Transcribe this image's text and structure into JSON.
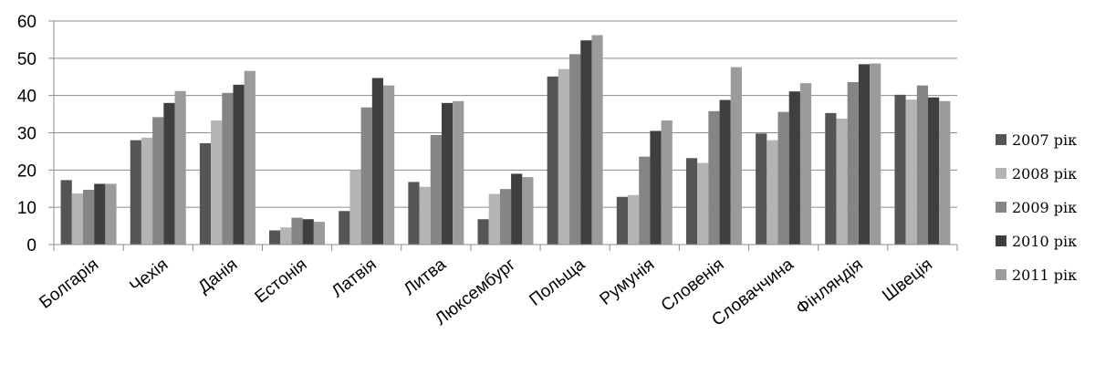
{
  "chart_data": {
    "type": "bar",
    "title": "",
    "xlabel": "",
    "ylabel": "",
    "ylim": [
      0,
      60
    ],
    "yticks": [
      0,
      10,
      20,
      30,
      40,
      50,
      60
    ],
    "grid": true,
    "legend_position": "right",
    "categories": [
      "Болгарія",
      "Чехія",
      "Данія",
      "Естонія",
      "Латвія",
      "Литва",
      "Люксембург",
      "Польща",
      "Румунія",
      "Словенія",
      "Словаччина",
      "Фінляндія",
      "Швеція"
    ],
    "series": [
      {
        "name": "2007 рік",
        "color": "#555555",
        "values": [
          17.3,
          28.0,
          27.2,
          3.8,
          9.0,
          16.8,
          6.8,
          45.1,
          12.8,
          23.2,
          29.8,
          35.3,
          40.2
        ]
      },
      {
        "name": "2008 рік",
        "color": "#b4b4b4",
        "values": [
          13.7,
          28.7,
          33.3,
          4.6,
          20.0,
          15.5,
          13.6,
          47.1,
          13.3,
          21.9,
          28.0,
          33.8,
          38.9
        ]
      },
      {
        "name": "2009 рік",
        "color": "#858585",
        "values": [
          14.7,
          34.2,
          40.7,
          7.2,
          36.8,
          29.4,
          14.9,
          51.1,
          23.6,
          35.8,
          35.6,
          43.6,
          42.7
        ]
      },
      {
        "name": "2010 рік",
        "color": "#3f3f3f",
        "values": [
          16.3,
          38.0,
          42.9,
          6.8,
          44.7,
          38.0,
          19.0,
          54.8,
          30.5,
          38.8,
          41.1,
          48.4,
          39.5
        ]
      },
      {
        "name": "2011 рік",
        "color": "#9b9b9b",
        "values": [
          16.3,
          41.2,
          46.6,
          6.1,
          42.7,
          38.5,
          18.1,
          56.2,
          33.3,
          47.6,
          43.3,
          48.6,
          38.5
        ]
      }
    ]
  }
}
